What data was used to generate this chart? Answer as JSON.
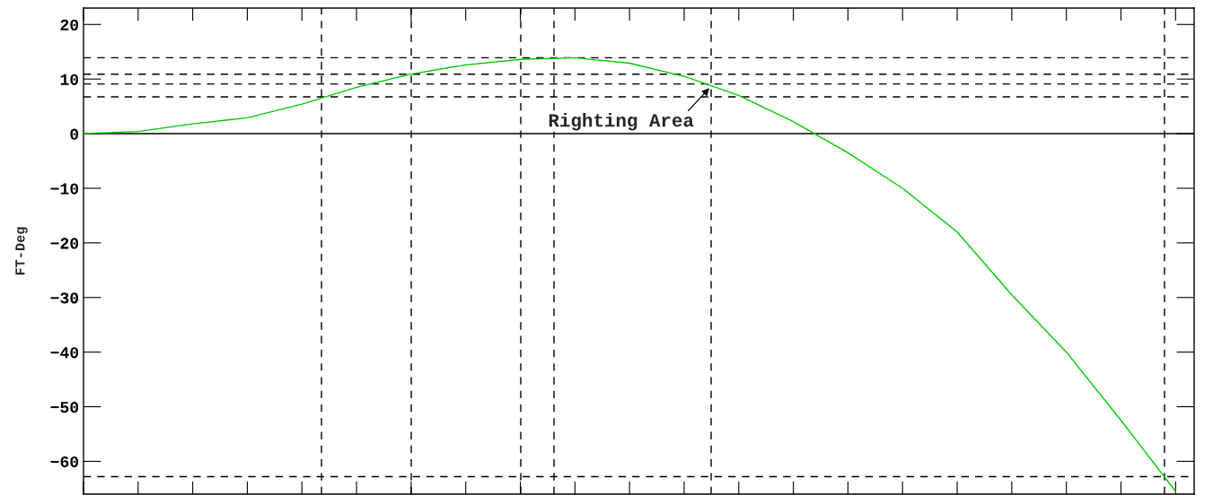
{
  "chart_data": {
    "type": "line",
    "ylabel": "FT-Deg",
    "categories": [
      null,
      null,
      null,
      null,
      null,
      null,
      null,
      null,
      null,
      null,
      null,
      null,
      null,
      null,
      null,
      null,
      null,
      null,
      null,
      null,
      null
    ],
    "series": [
      {
        "color": "#00cc00",
        "values": [
          0,
          0.4,
          1.8,
          2.9,
          5.4,
          8.5,
          10.9,
          12.6,
          13.6,
          13.9,
          12.9,
          10.5,
          7.0,
          2.2,
          -3.5,
          -10,
          -18,
          -29.5,
          -40,
          -52.5,
          -65.5
        ]
      }
    ],
    "ylim": [
      -66,
      23
    ],
    "yticks": [
      -60,
      -50,
      -40,
      -30,
      -20,
      -10,
      0,
      10,
      20
    ],
    "grid": false,
    "marker": "none",
    "line_style": "solid",
    "ref_lines": [
      {
        "axis": "y",
        "value": 0,
        "color": "#000000",
        "line_style": "solid"
      },
      {
        "axis": "y",
        "value": 13.9,
        "color": "#000000",
        "line_style": "dashed"
      },
      {
        "axis": "y",
        "value": 10.9,
        "color": "#000000",
        "line_style": "dashed"
      },
      {
        "axis": "y",
        "value": 9.1,
        "color": "#000000",
        "line_style": "dashed"
      },
      {
        "axis": "y",
        "value": 6.75,
        "color": "#000000",
        "line_style": "dashed"
      },
      {
        "axis": "y",
        "value": -62.8,
        "color": "#000000",
        "line_style": "dashed"
      }
    ],
    "annotations": [
      "Righting Area"
    ]
  }
}
